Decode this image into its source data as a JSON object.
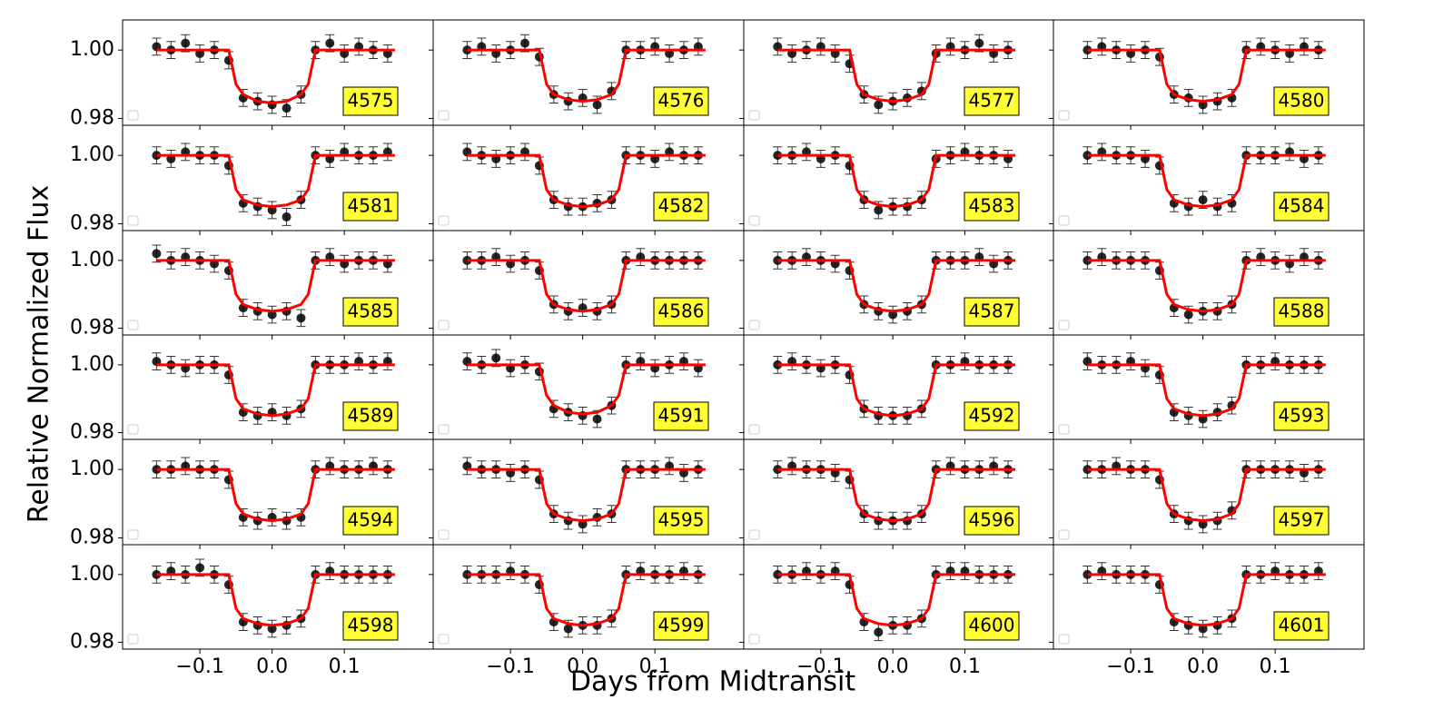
{
  "chart_data": {
    "type": "line",
    "x_label": "Days from Midtransit",
    "y_label": "Relative Normalized Flux",
    "xlim": [
      -0.207,
      0.223
    ],
    "xticks": [
      {
        "value": -0.1,
        "label": "−0.1"
      },
      {
        "value": 0,
        "label": "0.0"
      },
      0.1
    ],
    "ylim": [
      0.978,
      1.0088
    ],
    "yticks": [
      {
        "value": 0.98,
        "label": "0.98"
      },
      {
        "value": 1.0,
        "label": "1.00"
      }
    ],
    "model_color": "#ff0000",
    "point_color": "#000000",
    "label_box_color": "#ffff33",
    "error": 0.0025,
    "model_x": [
      -0.16,
      -0.06,
      -0.05,
      -0.04,
      -0.02,
      0,
      0.02,
      0.04,
      0.05,
      0.06,
      0.17
    ],
    "obs_x": [
      -0.16,
      -0.14,
      -0.12,
      -0.1,
      -0.08,
      -0.06,
      -0.04,
      -0.02,
      0,
      0.02,
      0.04,
      0.06,
      0.08,
      0.1,
      0.12,
      0.14,
      0.16
    ],
    "panels": [
      {
        "label": "4575",
        "model": [
          1.0,
          1.0,
          0.99,
          0.987,
          0.985,
          0.9845,
          0.985,
          0.987,
          0.99,
          1.0,
          1.0
        ],
        "obs": [
          1.001,
          1.0,
          1.002,
          0.999,
          1.0,
          0.997,
          0.986,
          0.985,
          0.984,
          0.983,
          0.987,
          1.0,
          1.002,
          0.999,
          1.001,
          1.0,
          0.999
        ]
      },
      {
        "label": "4576",
        "model": [
          1.0,
          1.0,
          0.99,
          0.987,
          0.9855,
          0.985,
          0.9855,
          0.987,
          0.99,
          1.0,
          1.0
        ],
        "obs": [
          1.0,
          1.001,
          0.999,
          1.0,
          1.002,
          0.998,
          0.987,
          0.985,
          0.986,
          0.984,
          0.988,
          1.0,
          1.0,
          1.001,
          0.999,
          1.0,
          1.001
        ]
      },
      {
        "label": "4577",
        "model": [
          1.0,
          1.0,
          0.99,
          0.987,
          0.9855,
          0.985,
          0.9855,
          0.987,
          0.99,
          1.0,
          1.0
        ],
        "obs": [
          1.001,
          0.999,
          1.0,
          1.001,
          0.999,
          0.996,
          0.987,
          0.984,
          0.985,
          0.986,
          0.988,
          0.999,
          1.001,
          1.0,
          1.002,
          0.999,
          1.0
        ]
      },
      {
        "label": "4580",
        "model": [
          1.0,
          1.0,
          0.99,
          0.987,
          0.9855,
          0.985,
          0.9855,
          0.987,
          0.99,
          1.0,
          1.0
        ],
        "obs": [
          1.0,
          1.001,
          1.0,
          0.999,
          1.0,
          0.998,
          0.987,
          0.986,
          0.984,
          0.985,
          0.986,
          1.0,
          1.001,
          1.0,
          0.999,
          1.001,
          1.0
        ]
      },
      {
        "label": "4581",
        "model": [
          1.0,
          1.0,
          0.99,
          0.987,
          0.9855,
          0.985,
          0.9855,
          0.987,
          0.99,
          1.0,
          1.0
        ],
        "obs": [
          1.0,
          0.999,
          1.001,
          1.0,
          1.0,
          0.997,
          0.986,
          0.985,
          0.984,
          0.982,
          0.987,
          1.0,
          0.999,
          1.001,
          1.0,
          1.0,
          1.001
        ]
      },
      {
        "label": "4582",
        "model": [
          1.0,
          1.0,
          0.99,
          0.987,
          0.9855,
          0.985,
          0.9855,
          0.987,
          0.99,
          1.0,
          1.0
        ],
        "obs": [
          1.001,
          1.0,
          0.999,
          1.0,
          1.001,
          0.997,
          0.987,
          0.985,
          0.985,
          0.986,
          0.987,
          1.0,
          1.0,
          0.999,
          1.001,
          1.0,
          1.0
        ]
      },
      {
        "label": "4583",
        "model": [
          1.0,
          1.0,
          0.99,
          0.987,
          0.9855,
          0.985,
          0.9855,
          0.987,
          0.99,
          1.0,
          1.0
        ],
        "obs": [
          1.0,
          1.0,
          1.001,
          0.999,
          1.0,
          0.997,
          0.987,
          0.984,
          0.985,
          0.985,
          0.987,
          0.999,
          1.0,
          1.001,
          1.0,
          1.0,
          0.999
        ]
      },
      {
        "label": "4584",
        "model": [
          1.0,
          1.0,
          0.99,
          0.987,
          0.9855,
          0.985,
          0.9855,
          0.987,
          0.99,
          1.0,
          1.0
        ],
        "obs": [
          1.0,
          1.001,
          1.0,
          1.0,
          0.999,
          0.997,
          0.986,
          0.985,
          0.987,
          0.985,
          0.986,
          1.0,
          1.0,
          1.0,
          1.001,
          0.999,
          1.0
        ]
      },
      {
        "label": "4585",
        "model": [
          1.0,
          1.0,
          0.99,
          0.987,
          0.9855,
          0.985,
          0.9855,
          0.987,
          0.99,
          1.0,
          1.0
        ],
        "obs": [
          1.002,
          1.0,
          1.001,
          1.0,
          0.999,
          0.997,
          0.986,
          0.985,
          0.984,
          0.985,
          0.983,
          1.0,
          1.001,
          0.999,
          1.0,
          1.0,
          0.999
        ]
      },
      {
        "label": "4586",
        "model": [
          1.0,
          1.0,
          0.99,
          0.987,
          0.9855,
          0.985,
          0.9855,
          0.987,
          0.99,
          1.0,
          1.0
        ],
        "obs": [
          1.0,
          1.0,
          1.001,
          0.999,
          1.0,
          0.997,
          0.987,
          0.985,
          0.986,
          0.985,
          0.987,
          1.0,
          1.001,
          1.0,
          1.0,
          1.0,
          1.0
        ]
      },
      {
        "label": "4587",
        "model": [
          1.0,
          1.0,
          0.99,
          0.987,
          0.9855,
          0.985,
          0.9855,
          0.987,
          0.99,
          1.0,
          1.0
        ],
        "obs": [
          1.0,
          1.0,
          1.001,
          1.0,
          0.999,
          0.997,
          0.987,
          0.985,
          0.984,
          0.985,
          0.987,
          1.0,
          1.0,
          1.0,
          1.001,
          0.999,
          1.0
        ]
      },
      {
        "label": "4588",
        "model": [
          1.0,
          1.0,
          0.99,
          0.987,
          0.9855,
          0.985,
          0.9855,
          0.987,
          0.99,
          1.0,
          1.0
        ],
        "obs": [
          1.0,
          1.001,
          1.0,
          1.0,
          1.0,
          0.997,
          0.986,
          0.984,
          0.985,
          0.985,
          0.987,
          1.0,
          1.001,
          1.0,
          0.999,
          1.001,
          1.0
        ]
      },
      {
        "label": "4589",
        "model": [
          1.0,
          1.0,
          0.99,
          0.987,
          0.9855,
          0.985,
          0.9855,
          0.987,
          0.99,
          1.0,
          1.0
        ],
        "obs": [
          1.001,
          1.0,
          0.999,
          1.0,
          1.0,
          0.997,
          0.986,
          0.985,
          0.986,
          0.985,
          0.987,
          1.0,
          1.0,
          1.0,
          1.001,
          1.0,
          1.001
        ]
      },
      {
        "label": "4591",
        "model": [
          1.0,
          1.0,
          0.991,
          0.988,
          0.986,
          0.9855,
          0.986,
          0.988,
          0.991,
          1.0,
          1.0
        ],
        "obs": [
          1.001,
          1.0,
          1.002,
          0.999,
          1.0,
          0.998,
          0.987,
          0.986,
          0.985,
          0.984,
          0.988,
          1.0,
          1.001,
          0.999,
          1.0,
          1.001,
          0.999
        ]
      },
      {
        "label": "4592",
        "model": [
          1.0,
          1.0,
          0.99,
          0.987,
          0.9855,
          0.985,
          0.9855,
          0.987,
          0.99,
          1.0,
          1.0
        ],
        "obs": [
          1.0,
          1.001,
          1.0,
          0.999,
          1.0,
          0.997,
          0.987,
          0.985,
          0.985,
          0.985,
          0.987,
          1.0,
          1.0,
          1.001,
          1.0,
          1.0,
          1.0
        ]
      },
      {
        "label": "4593",
        "model": [
          1.0,
          1.0,
          0.99,
          0.987,
          0.9855,
          0.985,
          0.9855,
          0.987,
          0.99,
          1.0,
          1.0
        ],
        "obs": [
          1.001,
          1.0,
          1.0,
          1.001,
          0.999,
          0.997,
          0.986,
          0.985,
          0.984,
          0.986,
          0.988,
          1.0,
          1.0,
          1.001,
          1.0,
          1.0,
          1.0
        ]
      },
      {
        "label": "4594",
        "model": [
          1.0,
          1.0,
          0.99,
          0.987,
          0.9855,
          0.985,
          0.9855,
          0.987,
          0.99,
          1.0,
          1.0
        ],
        "obs": [
          1.0,
          1.0,
          1.001,
          1.0,
          1.0,
          0.997,
          0.986,
          0.985,
          0.986,
          0.985,
          0.986,
          1.0,
          1.001,
          1.0,
          1.0,
          1.001,
          1.0
        ]
      },
      {
        "label": "4595",
        "model": [
          1.0,
          1.0,
          0.99,
          0.987,
          0.9855,
          0.985,
          0.9855,
          0.987,
          0.99,
          1.0,
          1.0
        ],
        "obs": [
          1.001,
          1.0,
          1.0,
          0.999,
          1.0,
          0.997,
          0.987,
          0.985,
          0.984,
          0.986,
          0.987,
          1.0,
          1.0,
          1.0,
          1.001,
          0.999,
          1.0
        ]
      },
      {
        "label": "4596",
        "model": [
          1.0,
          1.0,
          0.99,
          0.987,
          0.9855,
          0.985,
          0.9855,
          0.987,
          0.99,
          1.0,
          1.0
        ],
        "obs": [
          1.0,
          1.001,
          1.0,
          1.0,
          0.999,
          0.997,
          0.987,
          0.985,
          0.985,
          0.985,
          0.987,
          1.0,
          1.001,
          1.0,
          1.0,
          1.001,
          1.0
        ]
      },
      {
        "label": "4597",
        "model": [
          1.0,
          1.0,
          0.99,
          0.987,
          0.9855,
          0.985,
          0.9855,
          0.987,
          0.99,
          1.0,
          1.0
        ],
        "obs": [
          1.0,
          1.0,
          1.001,
          1.0,
          1.0,
          0.997,
          0.987,
          0.985,
          0.984,
          0.985,
          0.988,
          1.0,
          1.0,
          1.0,
          1.0,
          0.999,
          1.0
        ]
      },
      {
        "label": "4598",
        "model": [
          1.0,
          1.0,
          0.99,
          0.987,
          0.9855,
          0.985,
          0.9855,
          0.987,
          0.99,
          1.0,
          1.0
        ],
        "obs": [
          1.0,
          1.001,
          1.0,
          1.002,
          1.0,
          0.997,
          0.986,
          0.985,
          0.984,
          0.985,
          0.987,
          1.0,
          1.001,
          1.0,
          1.0,
          1.0,
          1.0
        ]
      },
      {
        "label": "4599",
        "model": [
          1.0,
          1.0,
          0.99,
          0.987,
          0.9855,
          0.985,
          0.9855,
          0.987,
          0.99,
          1.0,
          1.0
        ],
        "obs": [
          1.0,
          1.0,
          1.0,
          1.001,
          1.0,
          0.997,
          0.986,
          0.984,
          0.985,
          0.985,
          0.987,
          1.0,
          1.001,
          1.0,
          1.0,
          1.001,
          1.0
        ]
      },
      {
        "label": "4600",
        "model": [
          1.0,
          1.0,
          0.99,
          0.987,
          0.9855,
          0.985,
          0.9855,
          0.987,
          0.99,
          1.0,
          1.0
        ],
        "obs": [
          1.0,
          1.0,
          1.001,
          1.0,
          1.001,
          0.997,
          0.986,
          0.983,
          0.985,
          0.985,
          0.987,
          1.0,
          1.001,
          1.001,
          1.0,
          1.0,
          1.0
        ]
      },
      {
        "label": "4601",
        "model": [
          1.0,
          1.0,
          0.99,
          0.987,
          0.9855,
          0.985,
          0.9855,
          0.987,
          0.99,
          1.0,
          1.0
        ],
        "obs": [
          1.0,
          1.001,
          1.0,
          1.0,
          1.0,
          0.997,
          0.986,
          0.985,
          0.984,
          0.985,
          0.987,
          1.0,
          1.0,
          1.001,
          1.0,
          1.0,
          1.001
        ]
      }
    ]
  }
}
